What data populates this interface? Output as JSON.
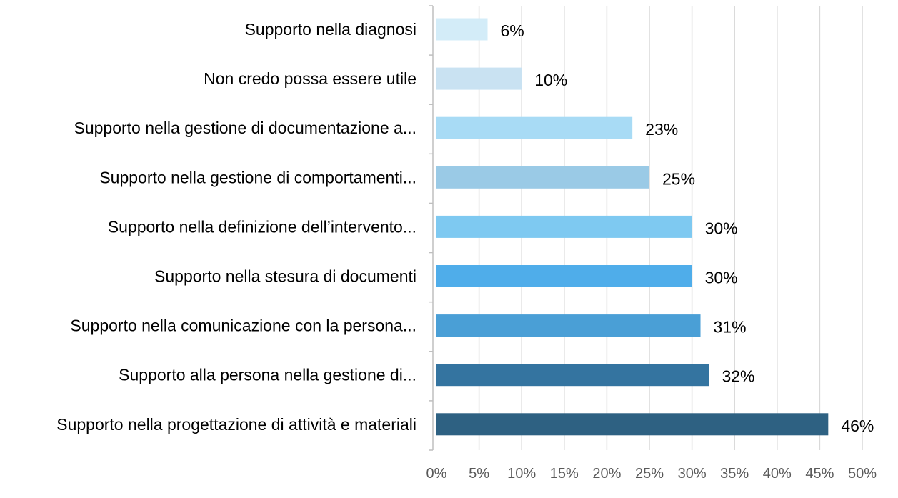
{
  "chart_data": {
    "type": "bar",
    "orientation": "horizontal",
    "categories": [
      "Supporto nella diagnosi",
      "Non credo possa essere utile",
      "Supporto nella gestione di documentazione a...",
      "Supporto nella gestione di comportamenti...",
      "Supporto nella definizione dell’intervento...",
      "Supporto nella stesura di documenti",
      "Supporto nella comunicazione con la persona...",
      "Supporto alla persona nella gestione di...",
      "Supporto nella progettazione di attività e materiali"
    ],
    "values": [
      6,
      10,
      23,
      25,
      30,
      30,
      31,
      32,
      46
    ],
    "data_labels": [
      "6%",
      "10%",
      "23%",
      "25%",
      "30%",
      "30%",
      "31%",
      "32%",
      "46%"
    ],
    "bar_colors": [
      "#d3ecf8",
      "#c9e2f2",
      "#a8dbf5",
      "#9acae6",
      "#7ec9f1",
      "#4fadea",
      "#4a9fd6",
      "#3474a0",
      "#2e6182"
    ],
    "xlim": [
      0,
      50
    ],
    "x_ticks": [
      0,
      5,
      10,
      15,
      20,
      25,
      30,
      35,
      40,
      45,
      50
    ],
    "x_tick_labels": [
      "0%",
      "5%",
      "10%",
      "15%",
      "20%",
      "25%",
      "30%",
      "35%",
      "40%",
      "45%",
      "50%"
    ],
    "grid": "vertical",
    "gridline_color": "#d9d9d9",
    "legend": "none",
    "title": "",
    "xlabel": "",
    "ylabel": ""
  }
}
